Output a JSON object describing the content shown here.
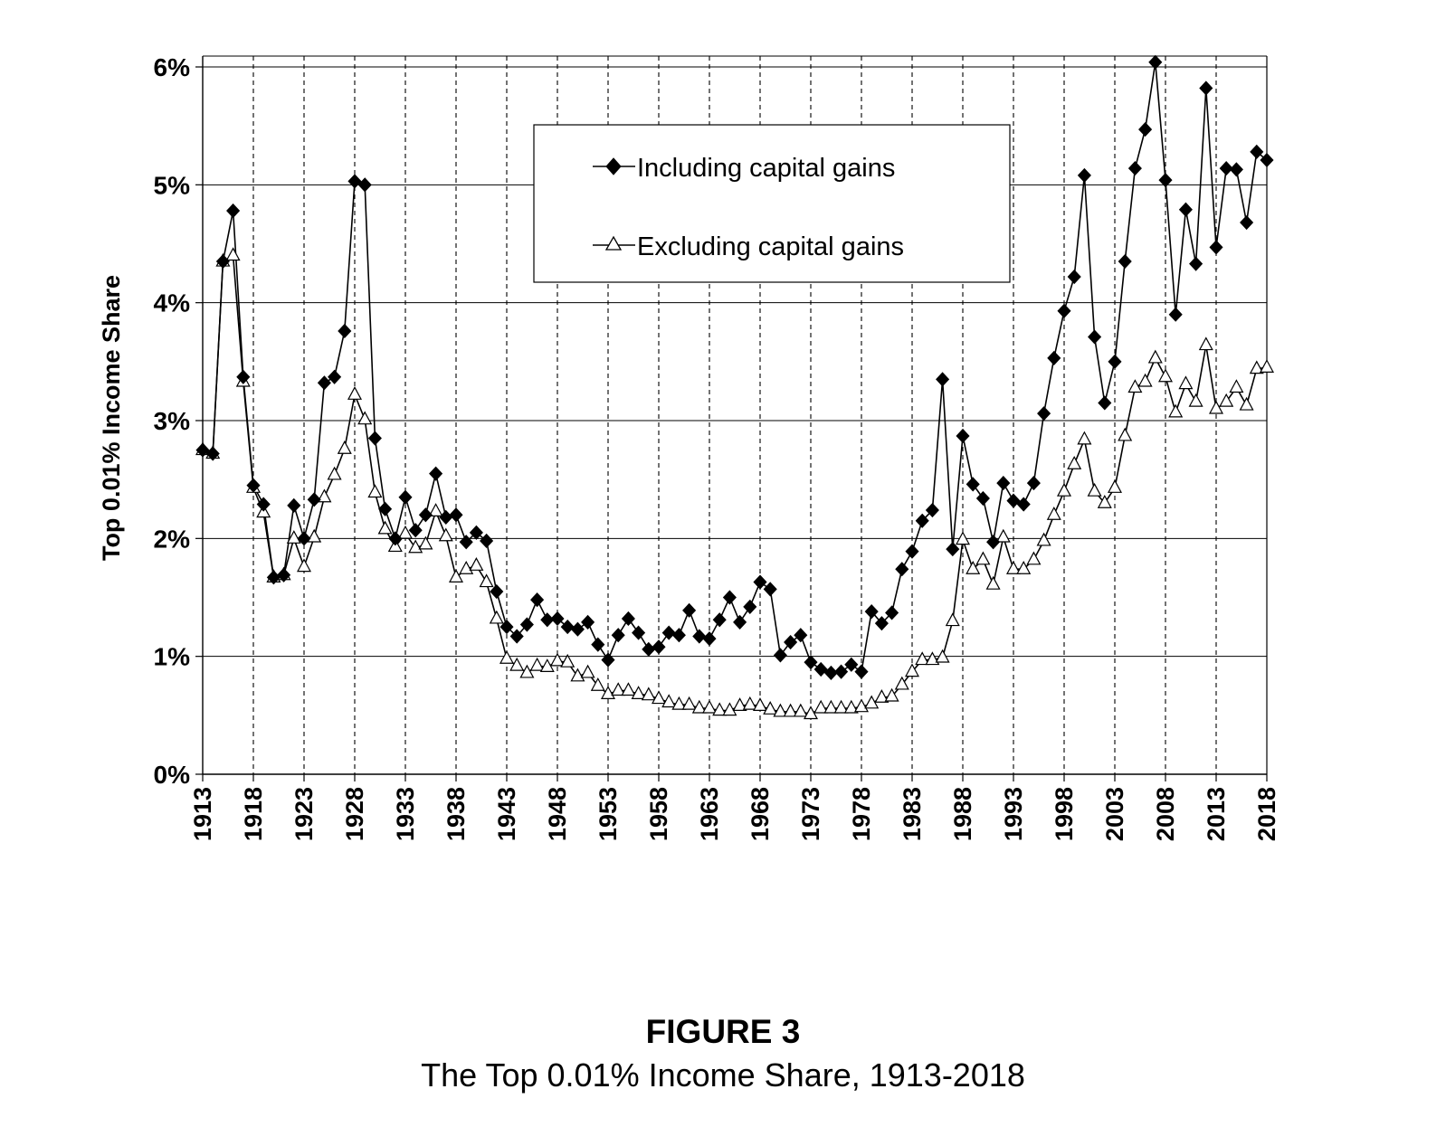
{
  "figure": {
    "label": "FIGURE 3",
    "caption": "The Top 0.01% Income Share, 1913-2018"
  },
  "chart_data": {
    "type": "line",
    "ylabel": "Top 0.01% Income Share",
    "xlabel": "",
    "ylim": [
      0,
      0.06
    ],
    "xlim": [
      1913,
      2018
    ],
    "y_ticks": [
      "0%",
      "1%",
      "2%",
      "3%",
      "4%",
      "5%",
      "6%"
    ],
    "x_ticks": [
      "1913",
      "1918",
      "1923",
      "1928",
      "1933",
      "1938",
      "1943",
      "1948",
      "1953",
      "1958",
      "1963",
      "1968",
      "1973",
      "1978",
      "1983",
      "1988",
      "1993",
      "1998",
      "2003",
      "2008",
      "2013",
      "2018"
    ],
    "grid": "horizontal solid lines at each 1%; vertical dashed lines every 5 years",
    "legend_position": "top-center",
    "colors": {
      "line": "#000000",
      "incl_marker": "#000000",
      "excl_marker": "#ffffff"
    },
    "series": [
      {
        "name": "Including capital gains",
        "marker": "filled-diamond",
        "x_start": 1913,
        "values": [
          0.0275,
          0.0272,
          0.0435,
          0.0478,
          0.0337,
          0.0245,
          0.0229,
          0.0167,
          0.0169,
          0.0228,
          0.02,
          0.0233,
          0.0332,
          0.0337,
          0.0376,
          0.0503,
          0.05,
          0.0285,
          0.0225,
          0.02,
          0.0235,
          0.0207,
          0.022,
          0.0255,
          0.0218,
          0.022,
          0.0197,
          0.0205,
          0.0198,
          0.0155,
          0.0125,
          0.0117,
          0.0127,
          0.0148,
          0.0131,
          0.0132,
          0.0125,
          0.0123,
          0.0129,
          0.011,
          0.0097,
          0.0118,
          0.0132,
          0.012,
          0.0106,
          0.0108,
          0.012,
          0.0118,
          0.0139,
          0.0117,
          0.0115,
          0.0131,
          0.015,
          0.0129,
          0.0142,
          0.0163,
          0.0157,
          0.0101,
          0.0112,
          0.0118,
          0.0095,
          0.0089,
          0.0086,
          0.0087,
          0.0093,
          0.0087,
          0.0138,
          0.0128,
          0.0137,
          0.0174,
          0.0189,
          0.0215,
          0.0224,
          0.0335,
          0.0191,
          0.0287,
          0.0246,
          0.0234,
          0.0197,
          0.0247,
          0.0232,
          0.0229,
          0.0247,
          0.0306,
          0.0353,
          0.0393,
          0.0422,
          0.0508,
          0.0371,
          0.0315,
          0.035,
          0.0435,
          0.0514,
          0.0547,
          0.0604,
          0.0504,
          0.039,
          0.0479,
          0.0433,
          0.0582,
          0.0447,
          0.0514,
          0.0513,
          0.0468,
          0.0528,
          0.0521
        ]
      },
      {
        "name": "Excluding capital gains",
        "marker": "open-triangle",
        "x_start": 1913,
        "values": [
          0.0275,
          0.0272,
          0.0435,
          0.044,
          0.0333,
          0.0243,
          0.0222,
          0.0167,
          0.0169,
          0.02,
          0.0176,
          0.0201,
          0.0235,
          0.0254,
          0.0276,
          0.0322,
          0.0301,
          0.0239,
          0.0208,
          0.0193,
          0.0204,
          0.0192,
          0.0195,
          0.0223,
          0.0202,
          0.0167,
          0.0174,
          0.0177,
          0.0163,
          0.0132,
          0.0098,
          0.0092,
          0.0086,
          0.0092,
          0.0091,
          0.0096,
          0.0095,
          0.0083,
          0.0086,
          0.0075,
          0.0068,
          0.0071,
          0.0071,
          0.0068,
          0.0067,
          0.0064,
          0.0061,
          0.0059,
          0.0059,
          0.0056,
          0.0056,
          0.0054,
          0.0054,
          0.0058,
          0.0059,
          0.0058,
          0.0055,
          0.0053,
          0.0053,
          0.0053,
          0.0051,
          0.0056,
          0.0056,
          0.0056,
          0.0056,
          0.0057,
          0.006,
          0.0065,
          0.0066,
          0.0076,
          0.0087,
          0.0097,
          0.0097,
          0.0099,
          0.013,
          0.0199,
          0.0174,
          0.0182,
          0.0161,
          0.0201,
          0.0174,
          0.0174,
          0.0182,
          0.0198,
          0.022,
          0.024,
          0.0263,
          0.0284,
          0.024,
          0.023,
          0.0243,
          0.0287,
          0.0328,
          0.0333,
          0.0353,
          0.0337,
          0.0307,
          0.0331,
          0.0316,
          0.0364,
          0.031,
          0.0316,
          0.0328,
          0.0313,
          0.0344,
          0.0345
        ]
      }
    ]
  }
}
